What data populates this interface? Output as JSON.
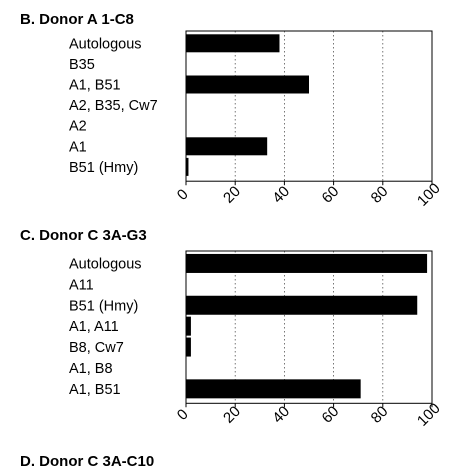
{
  "chart_data": [
    {
      "type": "bar",
      "orientation": "horizontal",
      "title": "B. Donor A  1-C8",
      "categories": [
        "Autologous",
        "B35",
        "A1, B51",
        "A2, B35, Cw7",
        "A2",
        "A1",
        "B51 (Hmy)"
      ],
      "values": [
        38,
        0,
        50,
        0,
        0,
        33,
        1
      ],
      "xlim": [
        0,
        100
      ],
      "xticks": [
        0,
        20,
        40,
        60,
        80,
        100
      ],
      "xtick_labels": [
        "0",
        "20",
        "40",
        "60",
        "80",
        "100"
      ],
      "grid": "vertical dotted",
      "bar_color": "#000000"
    },
    {
      "type": "bar",
      "orientation": "horizontal",
      "title": "C. Donor C  3A-G3",
      "categories": [
        "Autologous",
        "A11",
        "B51 (Hmy)",
        "A1, A11",
        "B8, Cw7",
        "A1, B8",
        "A1, B51"
      ],
      "values": [
        98,
        0,
        94,
        2,
        2,
        0,
        71
      ],
      "xlim": [
        0,
        100
      ],
      "xticks": [
        0,
        20,
        40,
        60,
        80,
        100
      ],
      "xtick_labels": [
        "0",
        "20",
        "40",
        "60",
        "80",
        "100"
      ],
      "grid": "vertical dotted",
      "bar_color": "#000000"
    },
    {
      "type": "bar",
      "orientation": "horizontal",
      "title": "D. Donor C  3A-C10",
      "categories": [],
      "values": []
    }
  ]
}
